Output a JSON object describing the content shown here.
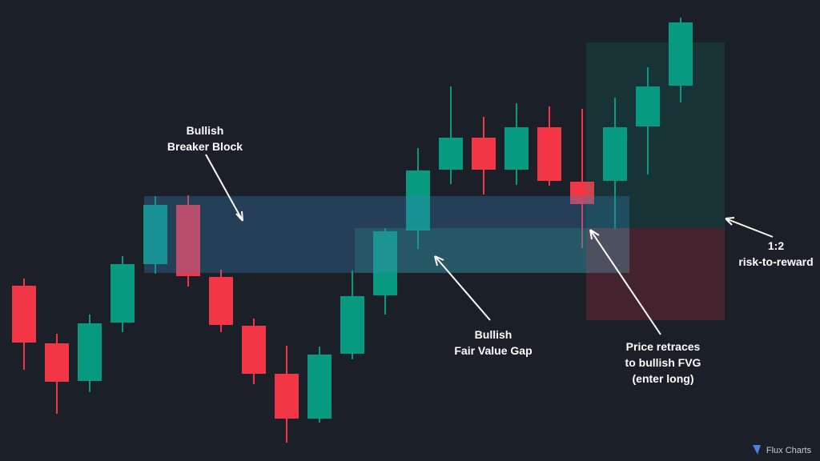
{
  "chart_data": {
    "type": "candlestick",
    "up_color": "#089981",
    "down_color": "#f23645",
    "ylim": [
      0,
      57.6
    ],
    "candles": [
      {
        "open": 21.9,
        "high": 22.8,
        "low": 11.4,
        "close": 14.8
      },
      {
        "open": 14.7,
        "high": 15.9,
        "low": 5.9,
        "close": 9.9
      },
      {
        "open": 10.0,
        "high": 18.3,
        "low": 8.6,
        "close": 17.2
      },
      {
        "open": 17.3,
        "high": 25.6,
        "low": 16.1,
        "close": 24.6
      },
      {
        "open": 24.6,
        "high": 33.1,
        "low": 23.4,
        "close": 32.0
      },
      {
        "open": 32.0,
        "high": 33.2,
        "low": 21.8,
        "close": 23.1
      },
      {
        "open": 23.0,
        "high": 23.9,
        "low": 16.1,
        "close": 17.0
      },
      {
        "open": 16.9,
        "high": 17.8,
        "low": 9.6,
        "close": 10.9
      },
      {
        "open": 10.9,
        "high": 14.4,
        "low": 2.3,
        "close": 5.3
      },
      {
        "open": 5.3,
        "high": 14.3,
        "low": 4.8,
        "close": 13.3
      },
      {
        "open": 13.4,
        "high": 23.8,
        "low": 12.7,
        "close": 20.6
      },
      {
        "open": 20.7,
        "high": 29.1,
        "low": 18.3,
        "close": 28.7
      },
      {
        "open": 28.8,
        "high": 39.1,
        "low": 26.5,
        "close": 36.3
      },
      {
        "open": 36.4,
        "high": 46.8,
        "low": 34.6,
        "close": 40.4
      },
      {
        "open": 40.4,
        "high": 43.0,
        "low": 33.3,
        "close": 36.4
      },
      {
        "open": 36.4,
        "high": 44.7,
        "low": 34.5,
        "close": 41.7
      },
      {
        "open": 41.7,
        "high": 44.3,
        "low": 34.4,
        "close": 35.0
      },
      {
        "open": 34.9,
        "high": 44.0,
        "low": 26.6,
        "close": 32.1
      },
      {
        "open": 35.0,
        "high": 45.4,
        "low": 29.1,
        "close": 41.7
      },
      {
        "open": 41.8,
        "high": 49.2,
        "low": 35.8,
        "close": 46.8
      },
      {
        "open": 46.9,
        "high": 55.4,
        "low": 44.8,
        "close": 54.8
      }
    ],
    "annotations": [
      {
        "lines": [
          "Bullish",
          "Breaker Block"
        ]
      },
      {
        "lines": [
          "Bullish",
          "Fair Value Gap"
        ]
      },
      {
        "lines": [
          "Price retraces",
          "to bullish FVG",
          "(enter long)"
        ]
      },
      {
        "lines": [
          "1:2",
          "risk-to-reward"
        ]
      }
    ]
  },
  "logo": "Flux Charts"
}
